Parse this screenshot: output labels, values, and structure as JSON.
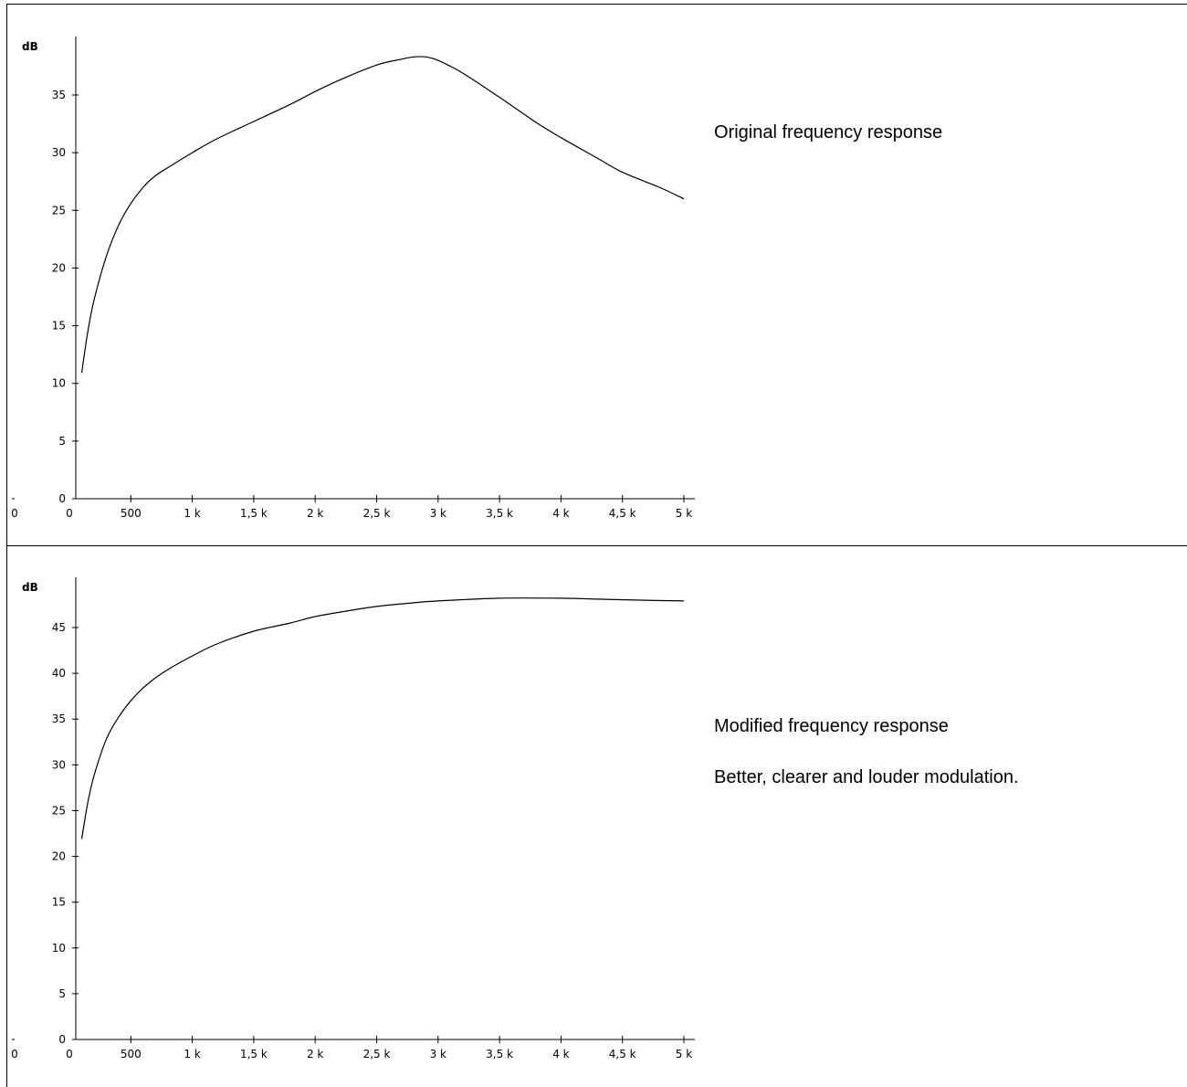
{
  "chart_data": [
    {
      "type": "line",
      "title": "",
      "ylabel": "dB",
      "xlabel": "",
      "xlim": [
        0,
        5000
      ],
      "ylim": [
        0,
        39
      ],
      "y_ticks": [
        0,
        5,
        10,
        15,
        20,
        25,
        30,
        35
      ],
      "y_tick_labels": [
        "0",
        "5",
        "10",
        "15",
        "20",
        "25",
        "30",
        "35"
      ],
      "x_ticks": [
        0,
        500,
        1000,
        1500,
        2000,
        2500,
        3000,
        3500,
        4000,
        4500,
        5000
      ],
      "x_tick_labels": [
        "0",
        "500",
        "1 k",
        "1,5 k",
        "2 k",
        "2,5 k",
        "3 k",
        "3,5 k",
        "4 k",
        "4,5 k",
        "5 k"
      ],
      "x_left_label": "0",
      "grid": false,
      "series": [
        {
          "color": "#000000",
          "x": [
            100,
            150,
            200,
            300,
            400,
            500,
            600,
            700,
            800,
            1000,
            1200,
            1500,
            1800,
            2000,
            2200,
            2500,
            2700,
            2800,
            2900,
            3000,
            3200,
            3500,
            3800,
            4000,
            4300,
            4500,
            4800,
            5000
          ],
          "y": [
            10.9,
            14.5,
            17.2,
            21.0,
            23.7,
            25.6,
            27.0,
            28.0,
            28.7,
            30.0,
            31.2,
            32.7,
            34.2,
            35.3,
            36.3,
            37.6,
            38.1,
            38.3,
            38.3,
            38.0,
            36.9,
            34.8,
            32.6,
            31.3,
            29.5,
            28.3,
            27.0,
            26.0
          ]
        }
      ]
    },
    {
      "type": "line",
      "title": "",
      "ylabel": "dB",
      "xlabel": "",
      "xlim": [
        0,
        5000
      ],
      "ylim": [
        0,
        50
      ],
      "y_ticks": [
        0,
        5,
        10,
        15,
        20,
        25,
        30,
        35,
        40,
        45
      ],
      "y_tick_labels": [
        "0",
        "5",
        "10",
        "15",
        "20",
        "25",
        "30",
        "35",
        "40",
        "45"
      ],
      "x_ticks": [
        0,
        500,
        1000,
        1500,
        2000,
        2500,
        3000,
        3500,
        4000,
        4500,
        5000
      ],
      "x_tick_labels": [
        "0",
        "500",
        "1 k",
        "1,5 k",
        "2 k",
        "2,5 k",
        "3 k",
        "3,5 k",
        "4 k",
        "4,5 k",
        "5 k"
      ],
      "x_left_label": "0",
      "grid": false,
      "series": [
        {
          "color": "#000000",
          "x": [
            100,
            150,
            200,
            300,
            400,
            500,
            600,
            700,
            800,
            1000,
            1200,
            1500,
            1800,
            2000,
            2300,
            2500,
            2800,
            3000,
            3500,
            4000,
            4300,
            4600,
            5000
          ],
          "y": [
            21.9,
            25.9,
            28.8,
            32.8,
            35.2,
            37.0,
            38.4,
            39.5,
            40.4,
            41.9,
            43.2,
            44.6,
            45.5,
            46.2,
            46.9,
            47.3,
            47.7,
            47.9,
            48.2,
            48.2,
            48.1,
            48.0,
            47.9
          ]
        }
      ]
    }
  ],
  "captions": {
    "top": "Original frequency response",
    "bottom_title": "Modified frequency response",
    "bottom_note": "Better, clearer and louder modulation."
  }
}
